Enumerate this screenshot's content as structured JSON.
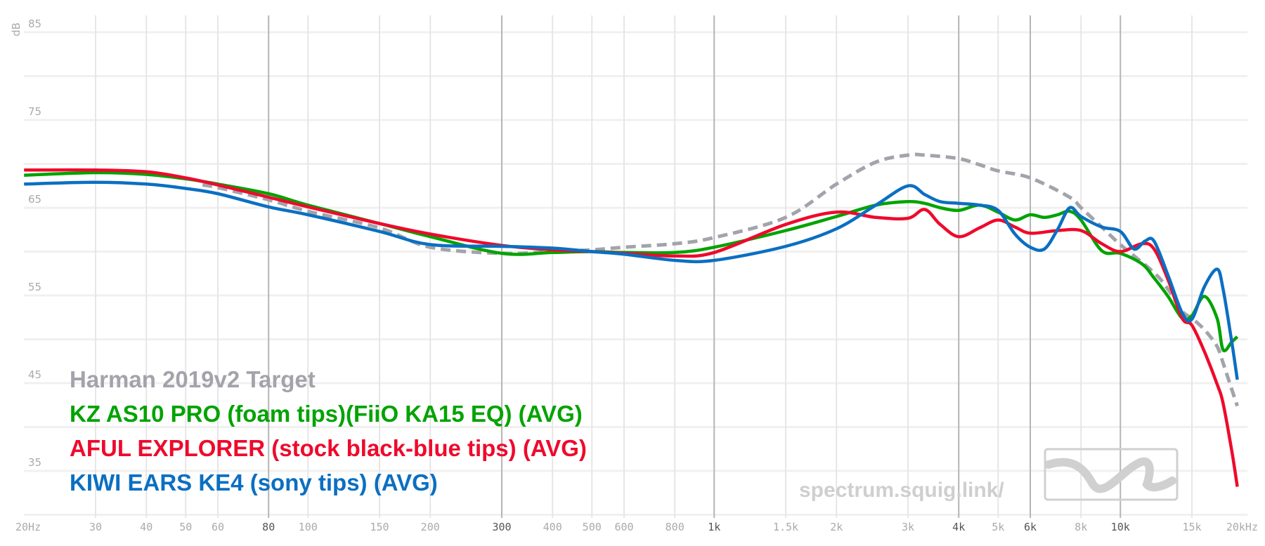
{
  "chart_data": {
    "type": "line",
    "title": "",
    "xlabel": "",
    "ylabel": "dB",
    "xscale": "log",
    "xlim": [
      20,
      20000
    ],
    "ylim": [
      30,
      85
    ],
    "grid": true,
    "legend_position": "bottom-left",
    "y_ticks": [
      85,
      75,
      65,
      55,
      45,
      35
    ],
    "x_ticks": [
      {
        "f": 20,
        "label": "20Hz",
        "major": false
      },
      {
        "f": 30,
        "label": "30",
        "major": false
      },
      {
        "f": 40,
        "label": "40",
        "major": false
      },
      {
        "f": 50,
        "label": "50",
        "major": false
      },
      {
        "f": 60,
        "label": "60",
        "major": false
      },
      {
        "f": 80,
        "label": "80",
        "major": true
      },
      {
        "f": 100,
        "label": "100",
        "major": false
      },
      {
        "f": 150,
        "label": "150",
        "major": false
      },
      {
        "f": 200,
        "label": "200",
        "major": false
      },
      {
        "f": 300,
        "label": "300",
        "major": true
      },
      {
        "f": 400,
        "label": "400",
        "major": false
      },
      {
        "f": 500,
        "label": "500",
        "major": false
      },
      {
        "f": 600,
        "label": "600",
        "major": false
      },
      {
        "f": 800,
        "label": "800",
        "major": false
      },
      {
        "f": 1000,
        "label": "1k",
        "major": true
      },
      {
        "f": 1500,
        "label": "1.5k",
        "major": false
      },
      {
        "f": 2000,
        "label": "2k",
        "major": false
      },
      {
        "f": 3000,
        "label": "3k",
        "major": false
      },
      {
        "f": 4000,
        "label": "4k",
        "major": true
      },
      {
        "f": 5000,
        "label": "5k",
        "major": false
      },
      {
        "f": 6000,
        "label": "6k",
        "major": true
      },
      {
        "f": 8000,
        "label": "8k",
        "major": false
      },
      {
        "f": 10000,
        "label": "10k",
        "major": true
      },
      {
        "f": 15000,
        "label": "15k",
        "major": false
      },
      {
        "f": 20000,
        "label": "20kHz",
        "major": false
      }
    ],
    "series": [
      {
        "name": "Harman 2019v2 Target",
        "color": "#a3a3ab",
        "dashed": true,
        "points": [
          [
            55,
            67.6
          ],
          [
            60,
            67.3
          ],
          [
            80,
            65.9
          ],
          [
            100,
            64.6
          ],
          [
            150,
            62.7
          ],
          [
            200,
            60.5
          ],
          [
            300,
            59.8
          ],
          [
            400,
            60.0
          ],
          [
            500,
            60.2
          ],
          [
            600,
            60.5
          ],
          [
            800,
            60.9
          ],
          [
            1000,
            61.6
          ],
          [
            1500,
            63.9
          ],
          [
            2000,
            67.7
          ],
          [
            2500,
            70.2
          ],
          [
            3000,
            71.0
          ],
          [
            3300,
            71.0
          ],
          [
            4000,
            70.6
          ],
          [
            4500,
            69.9
          ],
          [
            5000,
            69.2
          ],
          [
            6000,
            68.4
          ],
          [
            7500,
            66.2
          ],
          [
            8000,
            65.0
          ],
          [
            9000,
            62.8
          ],
          [
            10000,
            60.8
          ],
          [
            12100,
            57.6
          ],
          [
            13100,
            55.7
          ],
          [
            14200,
            53.2
          ],
          [
            15000,
            52.4
          ],
          [
            16100,
            51.1
          ],
          [
            17300,
            49.2
          ],
          [
            17900,
            47.3
          ],
          [
            18800,
            44.3
          ],
          [
            19400,
            42.4
          ]
        ]
      },
      {
        "name": "KZ AS10 PRO (foam tips)(FiiO KA15 EQ) (AVG)",
        "color": "#00a300",
        "points": [
          [
            20,
            68.7
          ],
          [
            30,
            69.0
          ],
          [
            40,
            68.8
          ],
          [
            50,
            68.3
          ],
          [
            60,
            67.7
          ],
          [
            80,
            66.6
          ],
          [
            100,
            65.3
          ],
          [
            150,
            63.2
          ],
          [
            200,
            61.7
          ],
          [
            300,
            59.8
          ],
          [
            400,
            59.9
          ],
          [
            500,
            60.0
          ],
          [
            600,
            59.9
          ],
          [
            800,
            59.9
          ],
          [
            1000,
            60.5
          ],
          [
            1500,
            62.4
          ],
          [
            2000,
            64.0
          ],
          [
            2500,
            65.3
          ],
          [
            3000,
            65.7
          ],
          [
            3300,
            65.5
          ],
          [
            3600,
            65.0
          ],
          [
            4000,
            64.7
          ],
          [
            4500,
            65.3
          ],
          [
            5000,
            64.5
          ],
          [
            5500,
            63.6
          ],
          [
            6000,
            64.2
          ],
          [
            6500,
            63.9
          ],
          [
            7000,
            64.2
          ],
          [
            7500,
            64.6
          ],
          [
            8000,
            63.6
          ],
          [
            9000,
            60.1
          ],
          [
            10000,
            59.8
          ],
          [
            11300,
            58.6
          ],
          [
            12100,
            57.0
          ],
          [
            13100,
            54.9
          ],
          [
            14200,
            52.4
          ],
          [
            15000,
            52.7
          ],
          [
            16100,
            54.9
          ],
          [
            17300,
            52.4
          ],
          [
            17900,
            48.8
          ],
          [
            18800,
            49.7
          ],
          [
            19400,
            50.3
          ]
        ]
      },
      {
        "name": "AFUL EXPLORER (stock black-blue tips) (AVG)",
        "color": "#ee0a2c",
        "points": [
          [
            20,
            69.3
          ],
          [
            30,
            69.3
          ],
          [
            40,
            69.1
          ],
          [
            50,
            68.4
          ],
          [
            60,
            67.6
          ],
          [
            80,
            66.2
          ],
          [
            100,
            65.1
          ],
          [
            150,
            63.2
          ],
          [
            200,
            62.0
          ],
          [
            300,
            60.7
          ],
          [
            400,
            60.2
          ],
          [
            500,
            60.0
          ],
          [
            600,
            59.8
          ],
          [
            800,
            59.5
          ],
          [
            1000,
            59.9
          ],
          [
            1500,
            63.1
          ],
          [
            2000,
            64.5
          ],
          [
            2500,
            63.9
          ],
          [
            3000,
            63.8
          ],
          [
            3300,
            64.8
          ],
          [
            3600,
            63.1
          ],
          [
            4000,
            61.7
          ],
          [
            4500,
            62.7
          ],
          [
            5000,
            63.6
          ],
          [
            5500,
            62.8
          ],
          [
            6000,
            62.1
          ],
          [
            7000,
            62.4
          ],
          [
            8000,
            62.4
          ],
          [
            9000,
            60.9
          ],
          [
            10000,
            60.0
          ],
          [
            11300,
            60.9
          ],
          [
            12100,
            60.3
          ],
          [
            13100,
            56.8
          ],
          [
            14200,
            52.4
          ],
          [
            15000,
            51.6
          ],
          [
            16100,
            48.6
          ],
          [
            17300,
            44.9
          ],
          [
            17900,
            42.7
          ],
          [
            18800,
            37.3
          ],
          [
            19400,
            33.2
          ]
        ]
      },
      {
        "name": "KIWI EARS KE4 (sony tips) (AVG)",
        "color": "#0a6fc2",
        "points": [
          [
            20,
            67.7
          ],
          [
            30,
            67.9
          ],
          [
            40,
            67.7
          ],
          [
            50,
            67.2
          ],
          [
            60,
            66.6
          ],
          [
            80,
            65.1
          ],
          [
            100,
            64.2
          ],
          [
            150,
            62.3
          ],
          [
            200,
            60.8
          ],
          [
            300,
            60.6
          ],
          [
            400,
            60.4
          ],
          [
            500,
            60.0
          ],
          [
            600,
            59.7
          ],
          [
            800,
            59.0
          ],
          [
            1000,
            59.0
          ],
          [
            1500,
            60.6
          ],
          [
            2000,
            62.6
          ],
          [
            2500,
            65.3
          ],
          [
            3000,
            67.5
          ],
          [
            3300,
            66.5
          ],
          [
            3600,
            65.7
          ],
          [
            4000,
            65.5
          ],
          [
            4500,
            65.3
          ],
          [
            5000,
            64.7
          ],
          [
            5500,
            62.0
          ],
          [
            6000,
            60.5
          ],
          [
            6500,
            60.3
          ],
          [
            7000,
            62.5
          ],
          [
            7500,
            65.0
          ],
          [
            8000,
            64.0
          ],
          [
            9000,
            62.8
          ],
          [
            10000,
            62.3
          ],
          [
            10800,
            60.3
          ],
          [
            11500,
            61.2
          ],
          [
            12100,
            61.2
          ],
          [
            13100,
            57.3
          ],
          [
            14200,
            53.0
          ],
          [
            15000,
            52.3
          ],
          [
            16100,
            56.0
          ],
          [
            17300,
            58.0
          ],
          [
            17900,
            55.7
          ],
          [
            18800,
            49.7
          ],
          [
            19400,
            45.4
          ]
        ]
      }
    ]
  },
  "watermark": "spectrum.squig.link/"
}
